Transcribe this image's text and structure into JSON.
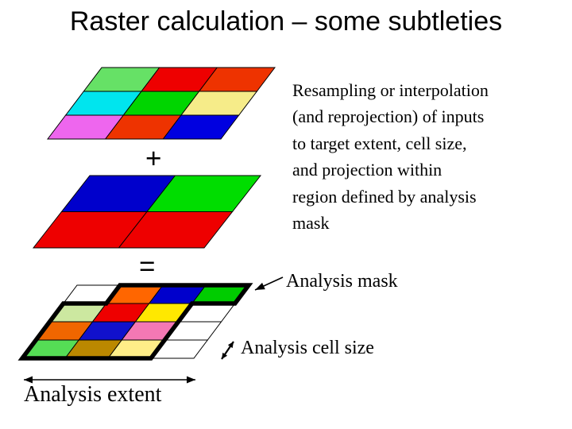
{
  "title": "Raster calculation – some subtleties",
  "operators": {
    "plus": "+",
    "equals": "="
  },
  "description": {
    "lines": [
      "Resampling or interpolation",
      "(and reprojection) of inputs",
      "to target extent, cell size,",
      "and projection within",
      "region defined by analysis",
      "mask"
    ]
  },
  "labels": {
    "analysis_mask": "Analysis mask",
    "analysis_cell_size": "Analysis cell size",
    "analysis_extent": "Analysis extent"
  },
  "colors": {
    "background": "#ffffff",
    "text": "#000000",
    "grid_line": "#000000",
    "mask_outline": "#000000",
    "arrow": "#000000"
  },
  "diagram": {
    "input_raster_1": {
      "rows": 3,
      "cols": 3,
      "cell_colors": [
        [
          "#66e166",
          "#ee0000",
          "#ee3300"
        ],
        [
          "#00e5ee",
          "#00d500",
          "#f6ec89"
        ],
        [
          "#ee66ee",
          "#ee3300",
          "#0000e0"
        ]
      ]
    },
    "input_raster_2": {
      "rows": 2,
      "cols": 2,
      "cell_colors": [
        [
          "#0000cc",
          "#00dd00"
        ],
        [
          "#ee0000",
          "#ee0000"
        ]
      ]
    },
    "output_raster": {
      "rows": 4,
      "cols": 4,
      "cell_colors": [
        [
          "#ffffff",
          "#ff6600",
          "#0000cc",
          "#00cc00"
        ],
        [
          "#cce8a0",
          "#ee0000",
          "#ffe800",
          "#ffffff"
        ],
        [
          "#f06600",
          "#1111cc",
          "#f478b4",
          "#ffffff"
        ],
        [
          "#55dd55",
          "#bb8800",
          "#ffee88",
          "#ffffff"
        ]
      ],
      "mask_cells": [
        [
          0,
          1,
          1,
          1
        ],
        [
          1,
          1,
          1,
          0
        ],
        [
          1,
          1,
          1,
          0
        ],
        [
          1,
          1,
          1,
          0
        ]
      ]
    }
  }
}
